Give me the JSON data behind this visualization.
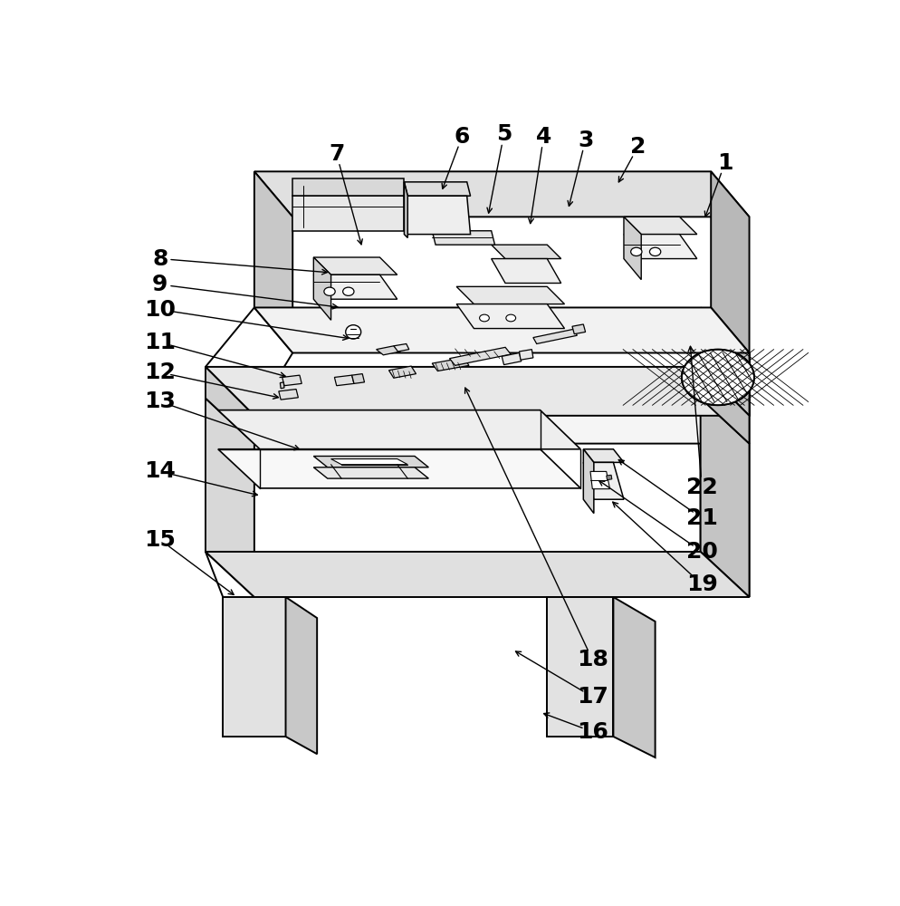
{
  "bg": "#ffffff",
  "lc": "#000000",
  "lw": 1.3,
  "fig_w": 9.95,
  "fig_h": 10.0,
  "labels": [
    [
      1,
      875,
      78,
      845,
      160,
      "right"
    ],
    [
      2,
      750,
      55,
      720,
      110,
      "right"
    ],
    [
      3,
      675,
      45,
      650,
      145,
      "right"
    ],
    [
      4,
      615,
      40,
      595,
      170,
      "right"
    ],
    [
      5,
      558,
      37,
      535,
      155,
      "right"
    ],
    [
      6,
      498,
      40,
      468,
      120,
      "right"
    ],
    [
      7,
      318,
      65,
      355,
      200,
      "right"
    ],
    [
      8,
      65,
      215,
      310,
      235,
      "left"
    ],
    [
      9,
      65,
      252,
      325,
      285,
      "left"
    ],
    [
      10,
      65,
      288,
      340,
      330,
      "left"
    ],
    [
      11,
      65,
      335,
      250,
      385,
      "left"
    ],
    [
      12,
      65,
      378,
      240,
      415,
      "left"
    ],
    [
      13,
      65,
      420,
      270,
      490,
      "left"
    ],
    [
      14,
      65,
      520,
      210,
      555,
      "left"
    ],
    [
      15,
      65,
      618,
      175,
      700,
      "left"
    ],
    [
      16,
      685,
      893,
      610,
      865,
      "right"
    ],
    [
      17,
      685,
      843,
      570,
      775,
      "right"
    ],
    [
      18,
      685,
      790,
      500,
      395,
      "right"
    ],
    [
      19,
      842,
      682,
      710,
      560,
      "right"
    ],
    [
      20,
      842,
      635,
      690,
      530,
      "right"
    ],
    [
      21,
      842,
      587,
      718,
      500,
      "right"
    ],
    [
      22,
      842,
      543,
      825,
      335,
      "right"
    ]
  ]
}
